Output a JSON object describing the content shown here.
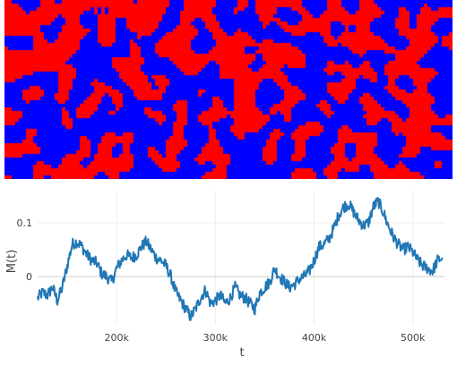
{
  "colors": {
    "spin_up": "#ff0000",
    "spin_down": "#0000ff",
    "line": "#1f77b4",
    "grid": "#eeeeee",
    "zero_line": "#cccccc",
    "text": "#444444"
  },
  "lattice": {
    "rows": 50,
    "cols": 125,
    "seed": 7,
    "states": [
      "spin_up",
      "spin_down"
    ]
  },
  "chart_data": {
    "type": "line",
    "title": "",
    "xlabel": "t",
    "ylabel": "M(t)",
    "xlim": [
      120000,
      532000
    ],
    "ylim": [
      -0.09,
      0.16
    ],
    "xticks": [
      200000,
      300000,
      400000,
      500000
    ],
    "xtick_labels": [
      "200k",
      "300k",
      "400k",
      "500k"
    ],
    "yticks": [
      0,
      0.1
    ],
    "ytick_labels": [
      "0",
      "0.1"
    ],
    "grid": true,
    "x": [
      120000,
      125000,
      130000,
      135000,
      140000,
      145000,
      150000,
      155000,
      160000,
      165000,
      170000,
      175000,
      180000,
      185000,
      190000,
      195000,
      200000,
      205000,
      210000,
      215000,
      220000,
      225000,
      230000,
      235000,
      240000,
      245000,
      250000,
      255000,
      260000,
      265000,
      270000,
      275000,
      280000,
      285000,
      290000,
      295000,
      300000,
      305000,
      310000,
      315000,
      320000,
      325000,
      330000,
      335000,
      340000,
      345000,
      350000,
      355000,
      360000,
      365000,
      370000,
      375000,
      380000,
      385000,
      390000,
      395000,
      400000,
      405000,
      410000,
      415000,
      420000,
      425000,
      430000,
      435000,
      440000,
      445000,
      450000,
      455000,
      460000,
      465000,
      470000,
      475000,
      480000,
      485000,
      490000,
      495000,
      500000,
      505000,
      510000,
      515000,
      520000,
      525000,
      530000
    ],
    "values": [
      -0.04,
      -0.03,
      -0.035,
      -0.02,
      -0.045,
      -0.02,
      0.02,
      0.06,
      0.065,
      0.055,
      0.04,
      0.03,
      0.025,
      0.005,
      0.0,
      -0.01,
      0.015,
      0.03,
      0.04,
      0.035,
      0.04,
      0.055,
      0.065,
      0.05,
      0.035,
      0.03,
      0.02,
      0.0,
      -0.03,
      -0.045,
      -0.06,
      -0.075,
      -0.06,
      -0.04,
      -0.025,
      -0.05,
      -0.045,
      -0.035,
      -0.05,
      -0.04,
      -0.02,
      -0.035,
      -0.04,
      -0.05,
      -0.06,
      -0.03,
      -0.02,
      -0.01,
      0.015,
      0.0,
      -0.01,
      -0.02,
      -0.015,
      -0.005,
      0.0,
      0.01,
      0.03,
      0.055,
      0.06,
      0.07,
      0.09,
      0.115,
      0.13,
      0.135,
      0.12,
      0.105,
      0.095,
      0.1,
      0.13,
      0.14,
      0.12,
      0.095,
      0.075,
      0.06,
      0.05,
      0.055,
      0.045,
      0.03,
      0.02,
      0.015,
      0.01,
      0.03,
      0.035
    ]
  }
}
